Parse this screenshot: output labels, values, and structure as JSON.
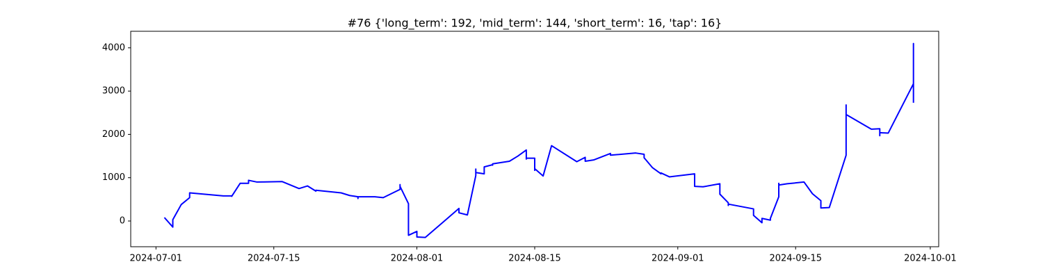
{
  "chart_data": {
    "type": "line",
    "title": "#76 {'long_term': 192, 'mid_term': 144, 'short_term': 16, 'tap': 16}",
    "color": "blue",
    "x": [
      "2024-07-02",
      "2024-07-03",
      "2024-07-03",
      "2024-07-04",
      "2024-07-05",
      "2024-07-05",
      "2024-07-09",
      "2024-07-10",
      "2024-07-10",
      "2024-07-11",
      "2024-07-12",
      "2024-07-12",
      "2024-07-13",
      "2024-07-16",
      "2024-07-18",
      "2024-07-19",
      "2024-07-20",
      "2024-07-20",
      "2024-07-23",
      "2024-07-24",
      "2024-07-25",
      "2024-07-25",
      "2024-07-25",
      "2024-07-27",
      "2024-07-28",
      "2024-07-30",
      "2024-07-30",
      "2024-07-30",
      "2024-07-31",
      "2024-07-31",
      "2024-08-01",
      "2024-08-01",
      "2024-08-02",
      "2024-08-06",
      "2024-08-06",
      "2024-08-07",
      "2024-08-08",
      "2024-08-08",
      "2024-08-08",
      "2024-08-08",
      "2024-08-09",
      "2024-08-09",
      "2024-08-10",
      "2024-08-10",
      "2024-08-10",
      "2024-08-12",
      "2024-08-13",
      "2024-08-14",
      "2024-08-14",
      "2024-08-14",
      "2024-08-15",
      "2024-08-15",
      "2024-08-15",
      "2024-08-15",
      "2024-08-16",
      "2024-08-17",
      "2024-08-20",
      "2024-08-21",
      "2024-08-21",
      "2024-08-22",
      "2024-08-24",
      "2024-08-24",
      "2024-08-27",
      "2024-08-28",
      "2024-08-28",
      "2024-08-29",
      "2024-08-29",
      "2024-08-30",
      "2024-08-30",
      "2024-08-31",
      "2024-09-03",
      "2024-09-03",
      "2024-09-03",
      "2024-09-04",
      "2024-09-06",
      "2024-09-06",
      "2024-09-07",
      "2024-09-07",
      "2024-09-07",
      "2024-09-10",
      "2024-09-10",
      "2024-09-11",
      "2024-09-11",
      "2024-09-12",
      "2024-09-12",
      "2024-09-13",
      "2024-09-13",
      "2024-09-13",
      "2024-09-14",
      "2024-09-16",
      "2024-09-17",
      "2024-09-18",
      "2024-09-18",
      "2024-09-18",
      "2024-09-19",
      "2024-09-21",
      "2024-09-21",
      "2024-09-21",
      "2024-09-24",
      "2024-09-25",
      "2024-09-25",
      "2024-09-25",
      "2024-09-26",
      "2024-09-29",
      "2024-09-29",
      "2024-09-29",
      "2024-09-29"
    ],
    "values": [
      80,
      -140,
      30,
      380,
      540,
      650,
      580,
      580,
      570,
      870,
      870,
      940,
      900,
      910,
      750,
      810,
      690,
      710,
      650,
      590,
      560,
      520,
      560,
      560,
      540,
      730,
      840,
      800,
      400,
      -330,
      -240,
      -370,
      -380,
      290,
      190,
      140,
      1050,
      1200,
      1080,
      1120,
      1090,
      1250,
      1300,
      1290,
      1320,
      1380,
      1500,
      1640,
      1430,
      1450,
      1450,
      1170,
      1180,
      1210,
      1040,
      1740,
      1370,
      1470,
      1380,
      1410,
      1560,
      1520,
      1570,
      1540,
      1460,
      1230,
      1230,
      1090,
      1110,
      1020,
      1090,
      940,
      800,
      790,
      860,
      620,
      420,
      360,
      390,
      280,
      130,
      -40,
      60,
      20,
      60,
      560,
      870,
      830,
      860,
      900,
      630,
      470,
      330,
      300,
      310,
      1520,
      2680,
      2460,
      2120,
      2130,
      1970,
      2040,
      2030,
      3170,
      4100,
      3200,
      2730
    ],
    "xlim": [
      "2024-06-28",
      "2024-10-02"
    ],
    "xticks": [
      "2024-07-01",
      "2024-07-15",
      "2024-08-01",
      "2024-08-15",
      "2024-09-01",
      "2024-09-15",
      "2024-10-01"
    ],
    "ylim": [
      -594,
      4382
    ],
    "yticks": [
      0,
      1000,
      2000,
      3000,
      4000
    ]
  }
}
